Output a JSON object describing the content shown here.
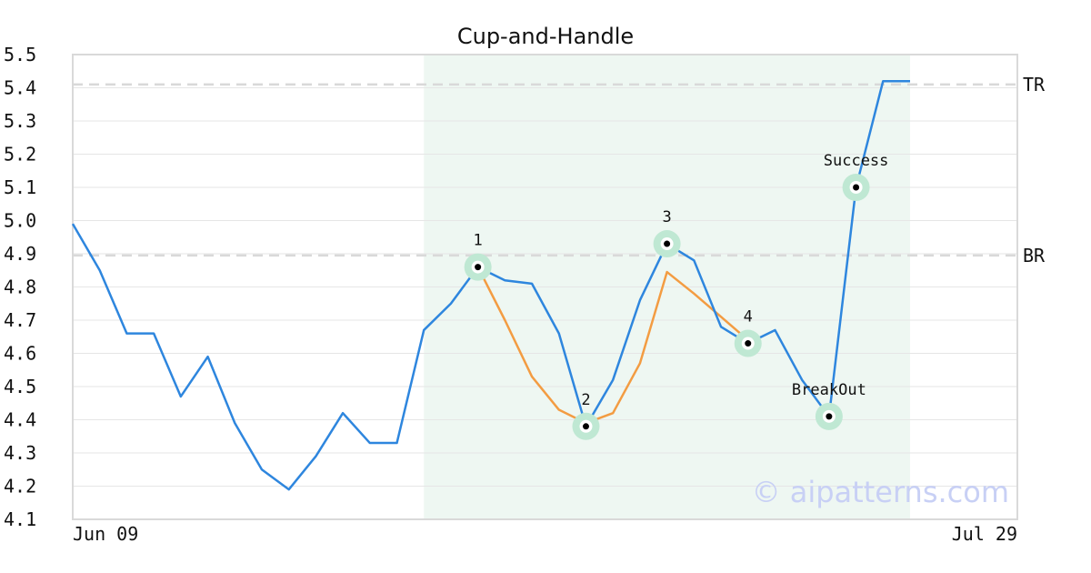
{
  "chart_data": {
    "type": "line",
    "title": "Cup-and-Handle",
    "xlabel": "",
    "ylabel": "",
    "ylim": [
      4.1,
      5.5
    ],
    "y_ticks": [
      "4.1",
      "4.2",
      "4.3",
      "4.4",
      "4.5",
      "4.6",
      "4.7",
      "4.8",
      "4.9",
      "5.0",
      "5.1",
      "5.2",
      "5.3",
      "5.4",
      "5.5"
    ],
    "x_tick_labels": [
      "Jun 09",
      "Jul 29"
    ],
    "grid": true,
    "series": [
      {
        "color": "#2e86de",
        "values": [
          4.99,
          4.85,
          4.66,
          4.66,
          4.47,
          4.59,
          4.39,
          4.25,
          4.19,
          4.29,
          4.42,
          4.33,
          4.33,
          4.67,
          4.75,
          4.86,
          4.82,
          4.81,
          4.66,
          4.38,
          4.52,
          4.76,
          4.93,
          4.88,
          4.68,
          4.63,
          4.67,
          4.52,
          4.41,
          5.1,
          5.42,
          5.42
        ]
      },
      {
        "color": "#f39c42",
        "start_index": 15,
        "values": [
          4.86,
          4.7,
          4.53,
          4.43,
          4.39,
          4.42,
          4.57,
          4.845,
          4.78,
          4.71,
          4.64
        ]
      }
    ],
    "reference_lines": [
      {
        "label": "TR",
        "value": 5.41
      },
      {
        "label": "BR",
        "value": 4.895
      }
    ],
    "shaded_region": {
      "start_index": 13,
      "end_index": 31,
      "color": "#eef7f2"
    },
    "annotations": [
      {
        "label": "1",
        "index": 15,
        "value": 4.86,
        "text_pos": "above"
      },
      {
        "label": "2",
        "index": 19,
        "value": 4.38,
        "text_pos": "above"
      },
      {
        "label": "3",
        "index": 22,
        "value": 4.93,
        "text_pos": "above"
      },
      {
        "label": "4",
        "index": 25,
        "value": 4.63,
        "text_pos": "above"
      },
      {
        "label": "BreakOut",
        "index": 28,
        "value": 4.41,
        "text_pos": "above"
      },
      {
        "label": "Success",
        "index": 29,
        "value": 5.1,
        "text_pos": "above"
      }
    ],
    "watermark": "© aipatterns.com"
  }
}
